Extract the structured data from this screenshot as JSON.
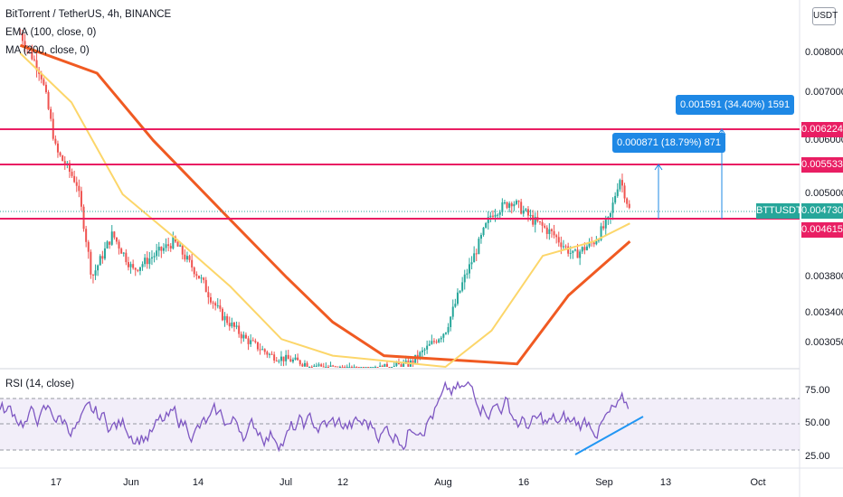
{
  "header": {
    "title": "BitTorrent / TetherUS, 4h, BINANCE",
    "indicator_1": "EMA (100, close, 0)",
    "indicator_2": "MA (200, close, 0)",
    "currency_button": "USDT"
  },
  "rsi_legend": "RSI (14, close)",
  "colors": {
    "ema": "#fcd66a",
    "ma": "#f05a22",
    "level_line": "#e91e63",
    "measure": "#1e88e5",
    "rsi": "#7e57c2",
    "rsi_band": "#ede7f6",
    "up_candle": "#26a69a",
    "down_candle": "#ef5350",
    "trendline": "#2196f3"
  },
  "price_tags": {
    "level_top": "0.006224",
    "level_mid": "0.005533",
    "level_low": "0.004615",
    "current": "0.004730",
    "symbol": "BTTUSDT"
  },
  "measure_boxes": {
    "small": "0.000871 (18.79%) 871",
    "large": "0.001591 (34.40%) 1591"
  },
  "chart_data": {
    "type": "line",
    "title": "BitTorrent / TetherUS, 4h, BINANCE",
    "y_ticks": [
      "0.008000",
      "0.007000",
      "0.006000",
      "0.005000",
      "0.003800",
      "0.003400",
      "0.003050"
    ],
    "x_ticks": [
      "17",
      "Jun",
      "14",
      "Jul",
      "12",
      "Aug",
      "16",
      "Sep",
      "13",
      "Oct"
    ],
    "rsi_ticks": [
      "75.00",
      "50.00",
      "25.00"
    ],
    "horizontal_levels": [
      0.006224,
      0.005533,
      0.004615
    ],
    "last_price": 0.00473,
    "price_path": [
      {
        "x": "May 10",
        "y": 0.0085
      },
      {
        "x": "May 14",
        "y": 0.0075
      },
      {
        "x": "May 17",
        "y": 0.0058
      },
      {
        "x": "May 21",
        "y": 0.0052
      },
      {
        "x": "May 24",
        "y": 0.0038
      },
      {
        "x": "May 28",
        "y": 0.0044
      },
      {
        "x": "Jun 1",
        "y": 0.0039
      },
      {
        "x": "Jun 5",
        "y": 0.0041
      },
      {
        "x": "Jun 9",
        "y": 0.0043
      },
      {
        "x": "Jun 13",
        "y": 0.0039
      },
      {
        "x": "Jun 18",
        "y": 0.0034
      },
      {
        "x": "Jun 23",
        "y": 0.0031
      },
      {
        "x": "Jun 28",
        "y": 0.0029
      },
      {
        "x": "Jul 5",
        "y": 0.0028
      },
      {
        "x": "Jul 15",
        "y": 0.0027
      },
      {
        "x": "Jul 25",
        "y": 0.0028
      },
      {
        "x": "Aug 1",
        "y": 0.0032
      },
      {
        "x": "Aug 6",
        "y": 0.004
      },
      {
        "x": "Aug 10",
        "y": 0.0047
      },
      {
        "x": "Aug 14",
        "y": 0.0049
      },
      {
        "x": "Aug 18",
        "y": 0.0046
      },
      {
        "x": "Aug 22",
        "y": 0.0044
      },
      {
        "x": "Aug 26",
        "y": 0.0041
      },
      {
        "x": "Aug 30",
        "y": 0.0043
      },
      {
        "x": "Sep 2",
        "y": 0.0046
      },
      {
        "x": "Sep 4",
        "y": 0.0053
      },
      {
        "x": "Sep 6",
        "y": 0.00473
      }
    ],
    "ema_100": [
      {
        "x": "May 10",
        "y": 0.008
      },
      {
        "x": "May 20",
        "y": 0.0068
      },
      {
        "x": "May 30",
        "y": 0.005
      },
      {
        "x": "Jun 10",
        "y": 0.0043
      },
      {
        "x": "Jun 20",
        "y": 0.0037
      },
      {
        "x": "Jun 30",
        "y": 0.0031
      },
      {
        "x": "Jul 10",
        "y": 0.0029
      },
      {
        "x": "Aug 1",
        "y": 0.0027
      },
      {
        "x": "Aug 10",
        "y": 0.0032
      },
      {
        "x": "Aug 20",
        "y": 0.0041
      },
      {
        "x": "Aug 30",
        "y": 0.0043
      },
      {
        "x": "Sep 6",
        "y": 0.00455
      }
    ],
    "ma_200": [
      {
        "x": "May 10",
        "y": 0.0082
      },
      {
        "x": "May 25",
        "y": 0.0075
      },
      {
        "x": "Jun 5",
        "y": 0.006
      },
      {
        "x": "Jun 20",
        "y": 0.0046
      },
      {
        "x": "Jul 1",
        "y": 0.0038
      },
      {
        "x": "Jul 10",
        "y": 0.0033
      },
      {
        "x": "Jul 20",
        "y": 0.0029
      },
      {
        "x": "Aug 15",
        "y": 0.0028
      },
      {
        "x": "Aug 25",
        "y": 0.0036
      },
      {
        "x": "Sep 6",
        "y": 0.0043
      }
    ],
    "rsi_range": [
      0,
      100
    ],
    "rsi_bands": [
      70,
      50,
      30
    ]
  }
}
